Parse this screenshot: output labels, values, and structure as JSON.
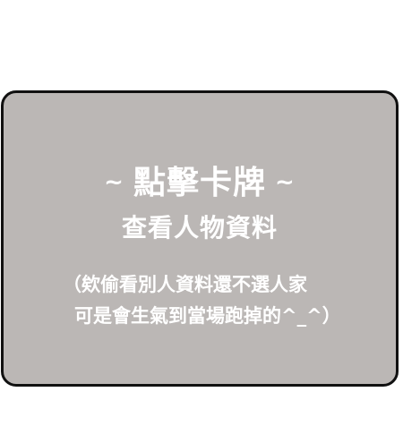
{
  "card": {
    "title_prefix": "~ ",
    "title": "點擊卡牌",
    "title_suffix": " ~",
    "subtitle": "查看人物資料",
    "note_line1": "（欸偷看別人資料還不選人家",
    "note_line2": "可是會生氣到當場跑掉的^_^）"
  },
  "colors": {
    "card_background": "#bbb7b5",
    "card_border": "#111111",
    "text": "#ffffff",
    "page_background": "#ffffff"
  }
}
